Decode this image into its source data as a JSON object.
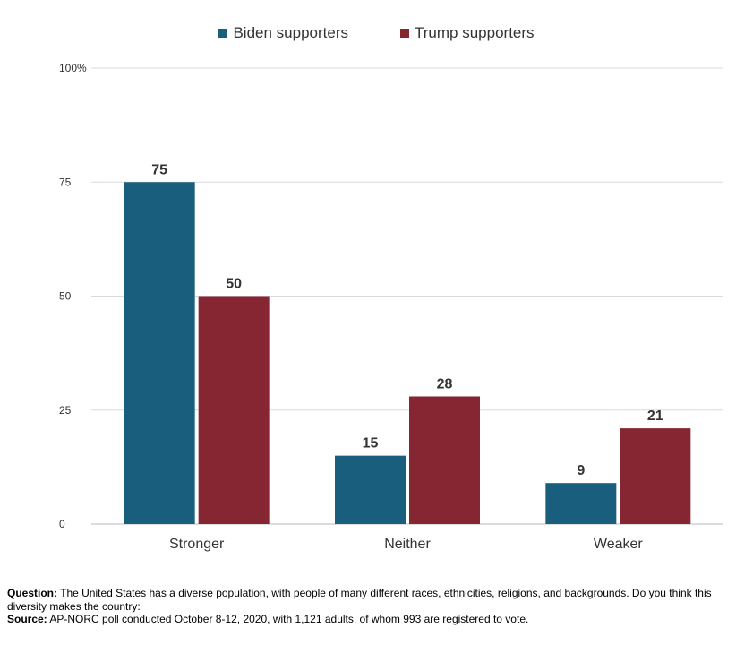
{
  "chart_data": {
    "type": "bar",
    "categories": [
      "Stronger",
      "Neither",
      "Weaker"
    ],
    "series": [
      {
        "name": "Biden supporters",
        "color": "#1a5e7e",
        "values": [
          75,
          15,
          9
        ]
      },
      {
        "name": "Trump supporters",
        "color": "#862633",
        "values": [
          50,
          28,
          21
        ]
      }
    ],
    "ylim": [
      0,
      100
    ],
    "yticks": [
      0,
      25,
      50,
      75,
      100
    ],
    "ytick_labels": [
      "0",
      "25",
      "50",
      "75",
      "100%"
    ],
    "grid": true,
    "legend_position": "top-center"
  },
  "notes": {
    "question_label": "Question:",
    "question_text": " The United States has a diverse population, with people of many different races, ethnicities, religions, and backgrounds.  Do you think this diversity makes the country:",
    "source_label": "Source:",
    "source_text": " AP-NORC poll conducted October 8-12, 2020, with 1,121 adults, of whom 993 are registered to vote."
  }
}
